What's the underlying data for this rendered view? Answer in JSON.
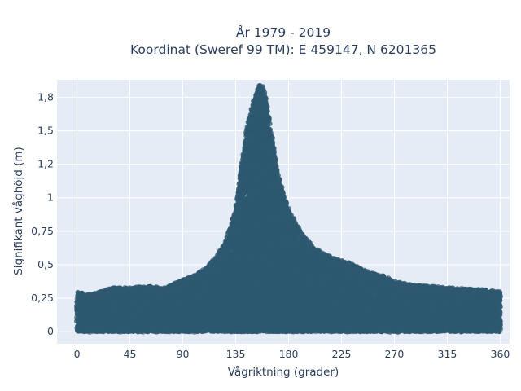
{
  "chart_data": {
    "type": "scatter",
    "title": [
      "År 1979 - 2019",
      "Koordinat (Sweref 99 TM): E 459147, N 6201365"
    ],
    "xlabel": "Vågriktning (grader)",
    "ylabel": "Signifikant våghöjd (m)",
    "xlim": [
      -17,
      368
    ],
    "ylim": [
      -0.09,
      1.88
    ],
    "x_ticks": [
      0,
      45,
      90,
      135,
      180,
      225,
      270,
      315,
      360
    ],
    "x_tick_labels": [
      "0",
      "45",
      "90",
      "135",
      "180",
      "225",
      "270",
      "315",
      "360"
    ],
    "y_ticks": [
      0,
      0.25,
      0.5,
      0.75,
      1,
      1.25,
      1.5,
      1.75
    ],
    "y_tick_labels": [
      "0",
      "0,25",
      "0,5",
      "0,75",
      "1",
      "1,2",
      "1,5",
      "1,8"
    ],
    "grid": true,
    "plot_background": "#e5ecf6",
    "marker_color": "#2e5870",
    "series": [
      {
        "envelope_upper": [
          [
            0,
            0.3
          ],
          [
            10,
            0.28
          ],
          [
            20,
            0.3
          ],
          [
            30,
            0.33
          ],
          [
            45,
            0.33
          ],
          [
            60,
            0.34
          ],
          [
            75,
            0.33
          ],
          [
            90,
            0.39
          ],
          [
            100,
            0.42
          ],
          [
            110,
            0.48
          ],
          [
            120,
            0.58
          ],
          [
            125,
            0.65
          ],
          [
            130,
            0.78
          ],
          [
            135,
            0.92
          ],
          [
            140,
            1.25
          ],
          [
            145,
            1.55
          ],
          [
            150,
            1.72
          ],
          [
            155,
            1.84
          ],
          [
            158,
            1.83
          ],
          [
            162,
            1.7
          ],
          [
            166,
            1.45
          ],
          [
            170,
            1.22
          ],
          [
            175,
            1.05
          ],
          [
            180,
            0.92
          ],
          [
            190,
            0.75
          ],
          [
            200,
            0.64
          ],
          [
            210,
            0.58
          ],
          [
            220,
            0.55
          ],
          [
            230,
            0.52
          ],
          [
            240,
            0.48
          ],
          [
            250,
            0.44
          ],
          [
            260,
            0.42
          ],
          [
            270,
            0.38
          ],
          [
            285,
            0.35
          ],
          [
            300,
            0.34
          ],
          [
            315,
            0.33
          ],
          [
            330,
            0.32
          ],
          [
            345,
            0.32
          ],
          [
            360,
            0.3
          ]
        ],
        "envelope_lower": 0.0,
        "typical_low": 0.05
      }
    ]
  }
}
